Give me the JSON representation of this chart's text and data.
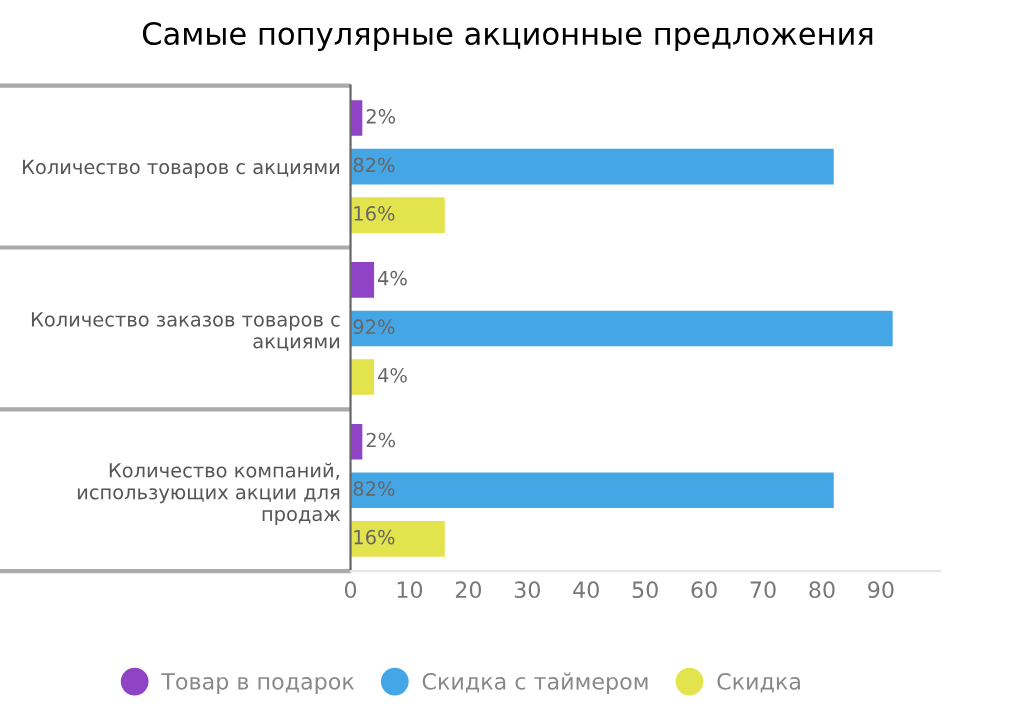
{
  "chart_data": {
    "type": "bar",
    "orientation": "horizontal",
    "title": "Самые популярные акционные предложения",
    "categories": [
      "Количество товаров с акциями",
      "Количество заказов товаров с акциями",
      "Количество компаний, использующих акции для продаж"
    ],
    "series": [
      {
        "name": "Товар в подарок",
        "color": "#8e44c4",
        "values": [
          2,
          4,
          2
        ],
        "value_labels": [
          "2%",
          "4%",
          "2%"
        ]
      },
      {
        "name": "Скидка с таймером",
        "color": "#45a6e6",
        "values": [
          82,
          92,
          82
        ],
        "value_labels": [
          "82%",
          "92%",
          "82%"
        ]
      },
      {
        "name": "Скидка",
        "color": "#e3e34e",
        "values": [
          16,
          4,
          16
        ],
        "value_labels": [
          "16%",
          "4%",
          "16%"
        ]
      }
    ],
    "xlim": [
      0,
      100
    ],
    "xticks": [
      0,
      10,
      20,
      30,
      40,
      50,
      60,
      70,
      80,
      90
    ],
    "grid": false,
    "legend": "bottom"
  }
}
